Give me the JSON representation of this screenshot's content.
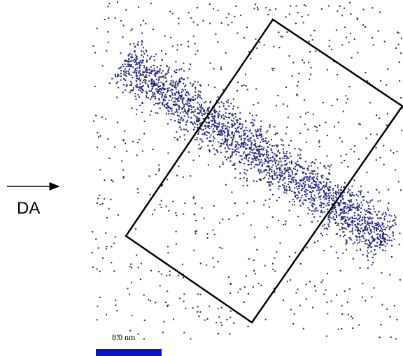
{
  "direction_label": "DA",
  "scale_bar": {
    "label": "8.0 nm"
  }
}
